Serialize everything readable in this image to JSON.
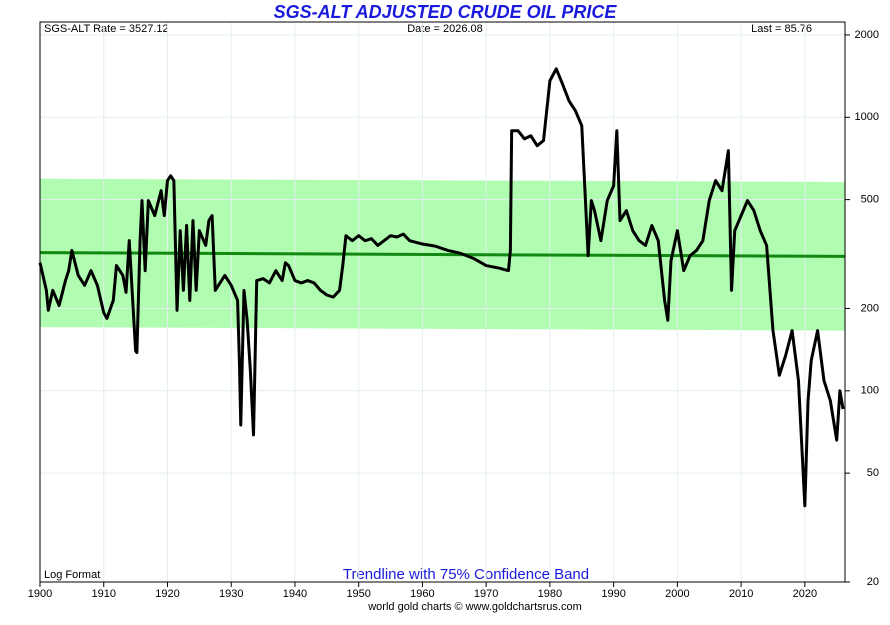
{
  "chart_data": {
    "type": "line",
    "title": "SGS-ALT ADJUSTED CRUDE OIL PRICE",
    "header_left": "SGS-ALT Rate = 3527.12",
    "header_center": "Date = 2026.08",
    "header_right": "Last = 85.76",
    "note_left": "Log Format",
    "subtitle": "Trendline with 75% Confidence Band",
    "credit": "world gold charts © www.goldchartsrus.com",
    "log_scale": true,
    "grid": true,
    "xlim": [
      1900,
      2026.3
    ],
    "ylim": [
      20,
      2230
    ],
    "xticks": [
      1900,
      1910,
      1920,
      1930,
      1940,
      1950,
      1960,
      1970,
      1980,
      1990,
      2000,
      2010,
      2020
    ],
    "yticks": [
      20,
      50,
      100,
      200,
      500,
      1000,
      2000
    ],
    "x": [
      1900,
      1901,
      1901.3,
      1902,
      1903,
      1904,
      1904.5,
      1905,
      1906,
      1907,
      1908,
      1909,
      1910,
      1910.5,
      1911.5,
      1912,
      1913,
      1913.5,
      1914,
      1915,
      1915.2,
      1915.7,
      1916,
      1916.5,
      1917,
      1918,
      1919,
      1919.5,
      1920,
      1920.5,
      1921,
      1921.5,
      1922,
      1922.5,
      1923,
      1923.5,
      1924,
      1924.5,
      1925,
      1926,
      1926.5,
      1927,
      1927.5,
      1928,
      1929,
      1930,
      1931,
      1931.3,
      1931.5,
      1932,
      1932.5,
      1933,
      1933.5,
      1934,
      1935,
      1936,
      1937,
      1938,
      1938.5,
      1939,
      1940,
      1941,
      1942,
      1943,
      1944,
      1945,
      1946,
      1947,
      1947.5,
      1948,
      1949,
      1950,
      1951,
      1952,
      1953,
      1955,
      1956,
      1957,
      1958,
      1960,
      1962,
      1964,
      1966,
      1968,
      1970,
      1972,
      1973.5,
      1973.8,
      1974,
      1975,
      1976,
      1977,
      1978,
      1979,
      1980,
      1981,
      1982,
      1983,
      1984,
      1985,
      1986,
      1986.5,
      1987,
      1988,
      1989,
      1990,
      1990.5,
      1991,
      1992,
      1993,
      1994,
      1995,
      1996,
      1997,
      1998,
      1998.5,
      1999,
      2000,
      2001,
      2002,
      2003,
      2004,
      2005,
      2006,
      2007,
      2008,
      2008.5,
      2009,
      2010,
      2011,
      2012,
      2013,
      2014,
      2015,
      2016,
      2017,
      2018,
      2019,
      2020,
      2020.5,
      2021,
      2022,
      2023,
      2024,
      2025,
      2025.5,
      2026
    ],
    "series": [
      {
        "name": "SGS-ALT Adjusted Crude Oil",
        "color": "#000000",
        "values": [
          294,
          233,
          197,
          233,
          205,
          253,
          275,
          326,
          264,
          243,
          275,
          243,
          193,
          184,
          214,
          287,
          264,
          229,
          354,
          140,
          138,
          354,
          496,
          275,
          496,
          437,
          539,
          437,
          587,
          611,
          587,
          197,
          385,
          233,
          402,
          214,
          419,
          233,
          385,
          340,
          419,
          437,
          233,
          243,
          264,
          243,
          214,
          124,
          75,
          233,
          181,
          119,
          69,
          253,
          257,
          248,
          275,
          253,
          294,
          287,
          253,
          248,
          253,
          248,
          233,
          224,
          220,
          233,
          287,
          369,
          354,
          369,
          354,
          360,
          340,
          369,
          365,
          374,
          354,
          344,
          338,
          326,
          318,
          305,
          287,
          281,
          275,
          326,
          893,
          893,
          834,
          856,
          787,
          822,
          1360,
          1503,
          1320,
          1148,
          1057,
          931,
          312,
          496,
          456,
          354,
          496,
          562,
          893,
          419,
          456,
          385,
          354,
          340,
          402,
          354,
          214,
          181,
          299,
          385,
          275,
          312,
          326,
          354,
          496,
          587,
          539,
          755,
          233,
          385,
          437,
          496,
          456,
          385,
          340,
          166,
          114,
          135,
          166,
          109,
          38,
          92,
          129,
          166,
          109,
          92,
          66,
          100,
          85.76
        ]
      }
    ],
    "trendline": {
      "color": "#118811",
      "x": [
        1900,
        2026.3
      ],
      "values": [
        320,
        310
      ]
    },
    "band": {
      "color": "#b0fcb0",
      "x": [
        1900,
        2026.3
      ],
      "upper": [
        596,
        580
      ],
      "lower": [
        171,
        166
      ]
    }
  }
}
